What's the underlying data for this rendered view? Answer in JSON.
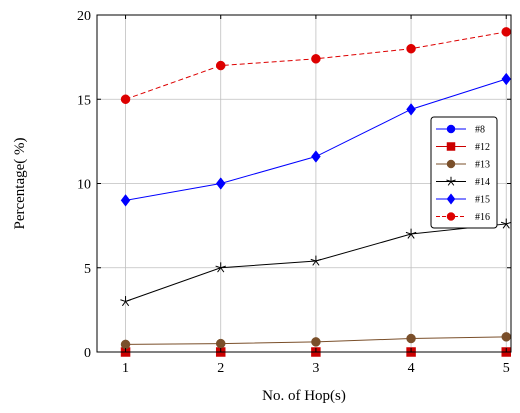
{
  "chart_data": {
    "type": "line",
    "xlabel": "No. of Hop(s)",
    "ylabel": "Percentage( %)",
    "x": [
      1,
      2,
      3,
      4,
      5
    ],
    "xticks": [
      "1",
      "2",
      "3",
      "4",
      "5"
    ],
    "yticks": [
      "0",
      "5",
      "10",
      "15",
      "20"
    ],
    "xlim": [
      0.7,
      5.05
    ],
    "ylim": [
      0,
      20
    ],
    "grid": true,
    "legend_position": "right",
    "series": [
      {
        "name": "#8",
        "values": [
          null,
          null,
          null,
          null,
          null
        ],
        "color": "#0000ff",
        "marker": "circle",
        "dashed": false
      },
      {
        "name": "#12",
        "values": [
          0,
          0,
          0,
          0,
          0
        ],
        "color": "#cc0000",
        "marker": "square",
        "dashed": false
      },
      {
        "name": "#13",
        "values": [
          0.45,
          0.5,
          0.6,
          0.8,
          0.9
        ],
        "color": "#7a4f2a",
        "marker": "circle",
        "dashed": false
      },
      {
        "name": "#14",
        "values": [
          3.0,
          5.0,
          5.4,
          7.0,
          7.6
        ],
        "color": "#000000",
        "marker": "star",
        "dashed": false
      },
      {
        "name": "#15",
        "values": [
          9.0,
          10.0,
          11.6,
          14.4,
          16.2
        ],
        "color": "#0000ff",
        "marker": "diamond",
        "dashed": false
      },
      {
        "name": "#16",
        "values": [
          15.0,
          17.0,
          17.4,
          18.0,
          19.0
        ],
        "color": "#dd0000",
        "marker": "circle",
        "dashed": true
      }
    ]
  }
}
